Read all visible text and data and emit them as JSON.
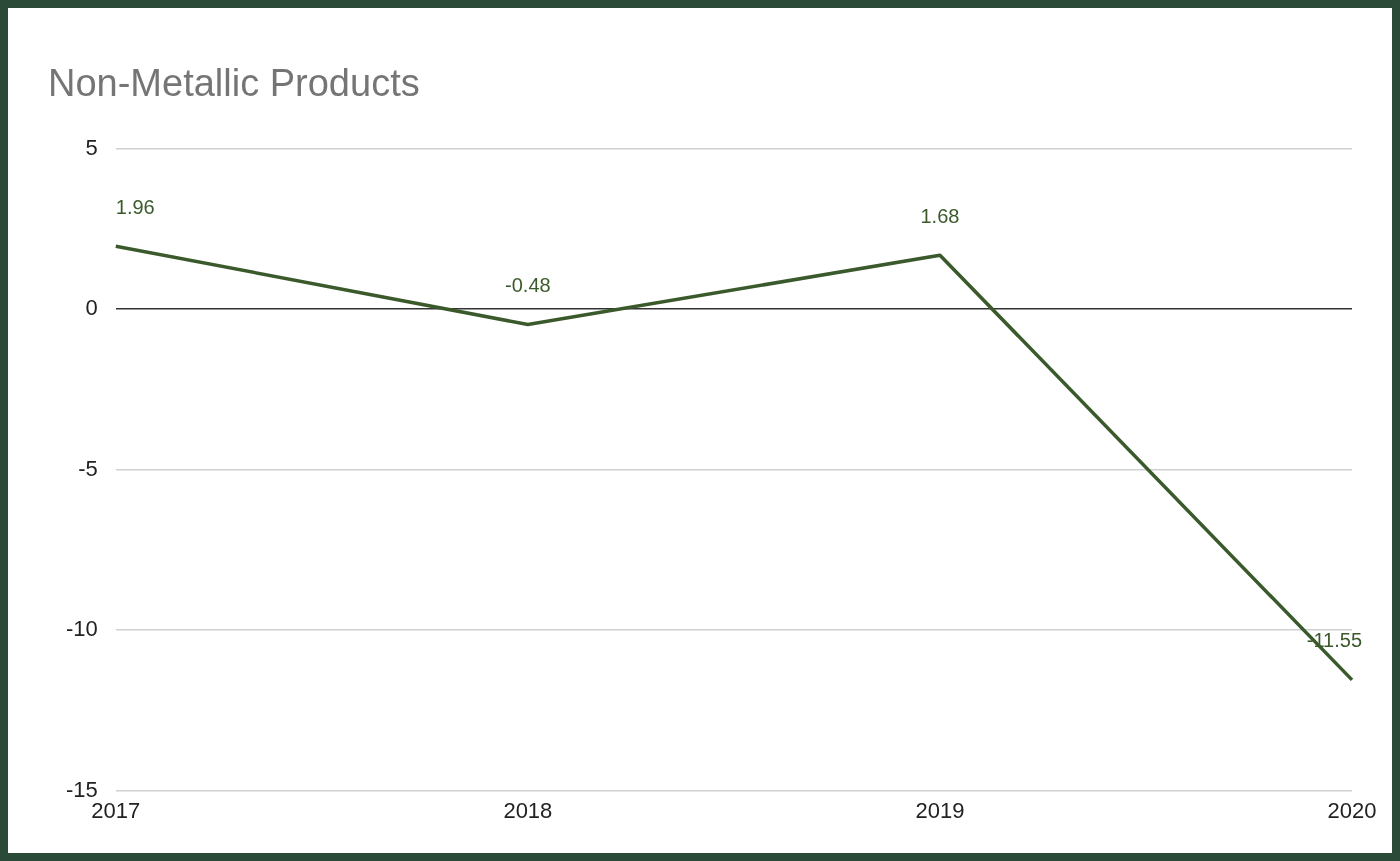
{
  "chart_data": {
    "type": "line",
    "title": "Non-Metallic Products",
    "categories": [
      "2017",
      "2018",
      "2019",
      "2020"
    ],
    "series": [
      {
        "color": "#3b5a2c",
        "values": [
          1.96,
          -0.48,
          1.68,
          -11.55
        ]
      }
    ],
    "ylim": [
      -15,
      5
    ],
    "yticks": [
      -15,
      -10,
      -5,
      0,
      5
    ],
    "grid": "y",
    "legend": false,
    "marker": "none",
    "line_style": "solid",
    "data_labels": true
  }
}
